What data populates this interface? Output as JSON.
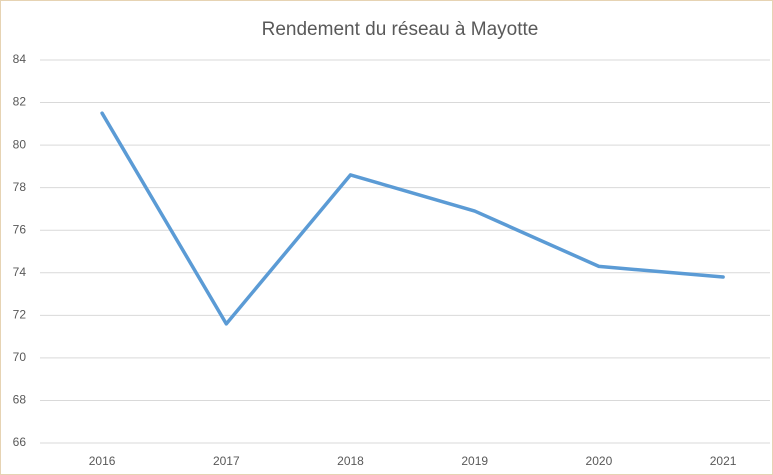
{
  "chart_data": {
    "type": "line",
    "title": "Rendement du réseau à Mayotte",
    "categories": [
      "2016",
      "2017",
      "2018",
      "2019",
      "2020",
      "2021"
    ],
    "series": [
      {
        "name": "Rendement",
        "color": "#5b9bd5",
        "values": [
          81.5,
          71.6,
          78.6,
          76.9,
          74.3,
          73.8
        ]
      }
    ],
    "ylim": [
      66,
      84
    ],
    "yticks": [
      66,
      68,
      70,
      72,
      74,
      76,
      78,
      80,
      82,
      84
    ],
    "grid": true
  }
}
